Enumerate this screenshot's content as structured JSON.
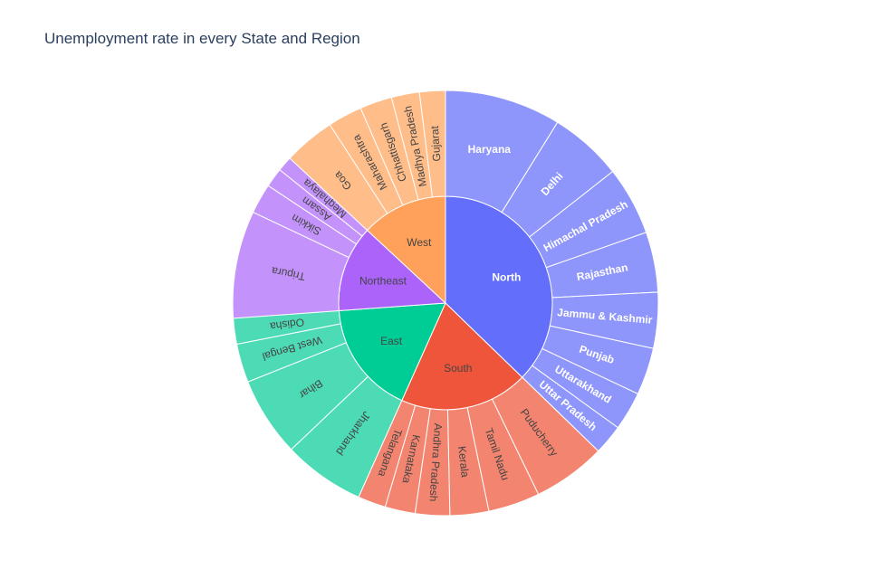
{
  "chart_data": {
    "type": "sunburst",
    "title": "Unemployment rate in every State and Region",
    "regions": [
      {
        "name": "North",
        "color": "#636efa",
        "states_color": "#8e95fb",
        "text_color": "#ffffff",
        "bold": true,
        "states": [
          {
            "name": "Haryana",
            "value": 27.0
          },
          {
            "name": "Delhi",
            "value": 17.0
          },
          {
            "name": "Himachal Pradesh",
            "value": 16.0
          },
          {
            "name": "Rajasthan",
            "value": 14.0
          },
          {
            "name": "Jammu & Kashmir",
            "value": 13.0
          },
          {
            "name": "Punjab",
            "value": 11.0
          },
          {
            "name": "Uttarakhand",
            "value": 9.0
          },
          {
            "name": "Uttar Pradesh",
            "value": 7.0
          }
        ]
      },
      {
        "name": "South",
        "color": "#ef553b",
        "states_color": "#f3846f",
        "text_color": "#444444",
        "bold": false,
        "states": [
          {
            "name": "Puducherry",
            "value": 17.0
          },
          {
            "name": "Tamil Nadu",
            "value": 12.0
          },
          {
            "name": "Kerala",
            "value": 9.0
          },
          {
            "name": "Andhra Pradesh",
            "value": 8.0
          },
          {
            "name": "Karnataka",
            "value": 7.0
          },
          {
            "name": "Telangana",
            "value": 6.5
          }
        ]
      },
      {
        "name": "East",
        "color": "#00cc96",
        "states_color": "#4ddbb5",
        "text_color": "#444444",
        "bold": false,
        "states": [
          {
            "name": "Jharkhand",
            "value": 19.0
          },
          {
            "name": "Bihar",
            "value": 18.5
          },
          {
            "name": "West Bengal",
            "value": 9.0
          },
          {
            "name": "Odisha",
            "value": 6.0
          }
        ]
      },
      {
        "name": "Northeast",
        "color": "#ab63fa",
        "states_color": "#c392fb",
        "text_color": "#444444",
        "bold": false,
        "states": [
          {
            "name": "Tripura",
            "value": 25.0
          },
          {
            "name": "Sikkim",
            "value": 7.0
          },
          {
            "name": "Assam",
            "value": 4.5
          },
          {
            "name": "Meghalaya",
            "value": 3.5
          }
        ]
      },
      {
        "name": "West",
        "color": "#ffa15a",
        "states_color": "#ffbd8a",
        "text_color": "#444444",
        "bold": false,
        "states": [
          {
            "name": "Goa",
            "value": 12.0
          },
          {
            "name": "Maharashtra",
            "value": 8.0
          },
          {
            "name": "Chhattisgarh",
            "value": 7.5
          },
          {
            "name": "Madhya Pradesh",
            "value": 6.5
          },
          {
            "name": "Gujarat",
            "value": 6.0
          }
        ]
      }
    ]
  }
}
